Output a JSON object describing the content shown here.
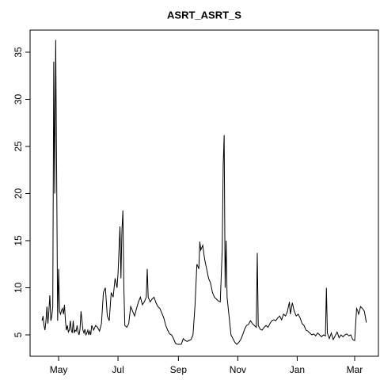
{
  "chart_data": {
    "type": "line",
    "title": "ASRT_ASRT_S",
    "color": "#000000",
    "x": [
      13,
      14,
      15,
      16,
      17,
      18,
      19,
      20,
      21,
      22,
      23,
      24,
      25,
      26,
      27,
      28,
      29,
      30,
      31,
      32,
      33,
      34,
      35,
      36,
      37,
      38,
      39,
      40,
      41,
      42,
      43,
      44,
      45,
      46,
      47,
      48,
      49,
      50,
      51,
      52,
      53,
      54,
      55,
      56,
      57,
      58,
      59,
      60,
      61,
      62,
      63,
      64,
      66,
      68,
      70,
      72,
      74,
      76,
      78,
      80,
      82,
      84,
      86,
      88,
      90,
      91,
      93,
      94,
      95,
      96,
      97,
      98,
      100,
      102,
      104,
      106,
      108,
      110,
      112,
      114,
      116,
      118,
      120,
      121,
      122,
      124,
      126,
      128,
      130,
      132,
      134,
      136,
      138,
      140,
      142,
      144,
      146,
      148,
      150,
      152,
      154,
      156,
      158,
      160,
      162,
      164,
      166,
      168,
      170,
      172,
      174,
      175,
      176,
      178,
      180,
      182,
      184,
      186,
      188,
      190,
      192,
      194,
      196,
      198,
      199,
      200,
      201,
      202,
      203,
      205,
      207,
      209,
      211,
      213,
      215,
      217,
      219,
      221,
      223,
      225,
      227,
      229,
      231,
      233,
      234,
      235,
      237,
      239,
      241,
      243,
      245,
      247,
      249,
      251,
      253,
      255,
      257,
      259,
      261,
      263,
      265,
      267,
      268,
      270,
      272,
      274,
      276,
      278,
      280,
      282,
      284,
      286,
      288,
      290,
      292,
      294,
      296,
      298,
      300,
      302,
      304,
      305,
      306,
      308,
      310,
      312,
      314,
      316,
      318,
      320,
      322,
      324,
      326,
      328,
      330,
      332,
      334,
      336,
      337,
      338,
      339,
      340,
      342,
      344,
      346
    ],
    "values": [
      6.5,
      7,
      6,
      5.5,
      6.5,
      8,
      6.2,
      7.5,
      9.2,
      6.5,
      7,
      8,
      34,
      20,
      36.3,
      22,
      6.5,
      12,
      7.5,
      7.2,
      7.6,
      7.8,
      7.2,
      8.2,
      6.5,
      5.5,
      6,
      5.3,
      5.5,
      6.5,
      5.5,
      5.2,
      6.5,
      5.2,
      5.5,
      5.4,
      6,
      5.3,
      5,
      5.6,
      7.5,
      6.5,
      5.5,
      5.2,
      5.6,
      5,
      5.2,
      5.5,
      5,
      5.4,
      5,
      6,
      5.5,
      6,
      5.8,
      5.4,
      6.2,
      9.5,
      10,
      7,
      6.5,
      9.5,
      9,
      11,
      10,
      11.5,
      16.5,
      11,
      16,
      18.2,
      10,
      6,
      5.8,
      6.2,
      8,
      7.5,
      7,
      7.8,
      8.5,
      9,
      8.2,
      8.5,
      9,
      12,
      9,
      8.5,
      8.8,
      9,
      8.4,
      8,
      7.8,
      7.3,
      6.8,
      6,
      5.5,
      5.1,
      5,
      4.6,
      4.1,
      4,
      4,
      4,
      4.6,
      4.4,
      4.3,
      4.4,
      4.5,
      5,
      8,
      12.5,
      12,
      14.9,
      14,
      14.5,
      13,
      12,
      11,
      10.5,
      9.5,
      9,
      8.8,
      8.6,
      8.5,
      14,
      23,
      26.2,
      10,
      15,
      9,
      7,
      5,
      4.6,
      4.2,
      4,
      4.2,
      4.5,
      5,
      5.6,
      6,
      6.1,
      6.5,
      6.2,
      6,
      5.8,
      13.7,
      6,
      5.6,
      5.5,
      5.8,
      6,
      5.8,
      6.2,
      6.5,
      6.6,
      6.5,
      6.8,
      7,
      6.6,
      7.2,
      7,
      7.5,
      8.5,
      7.2,
      8.4,
      7.5,
      7,
      7.2,
      6.8,
      6.2,
      6,
      5.5,
      5.4,
      5.2,
      5,
      5.1,
      4.9,
      5.2,
      5,
      4.8,
      5,
      4.9,
      10,
      5.2,
      4.6,
      5.2,
      4.5,
      4.9,
      5.3,
      4.7,
      5,
      4.8,
      5,
      5.1,
      4.9,
      5,
      4.5,
      4.4,
      7.8,
      7.6,
      7.2,
      7.5,
      8,
      7.8,
      7.5,
      6.3
    ],
    "xlim": [
      0.7,
      358.4
    ],
    "xticks": [
      {
        "value": 30,
        "label": "May"
      },
      {
        "value": 91,
        "label": "Jul"
      },
      {
        "value": 153,
        "label": "Sep"
      },
      {
        "value": 214,
        "label": "Nov"
      },
      {
        "value": 275,
        "label": "Jan"
      },
      {
        "value": 334,
        "label": "Mar"
      }
    ],
    "ylim": [
      2.73,
      37.35
    ],
    "yticks": [
      5,
      10,
      15,
      20,
      25,
      30,
      35
    ]
  }
}
